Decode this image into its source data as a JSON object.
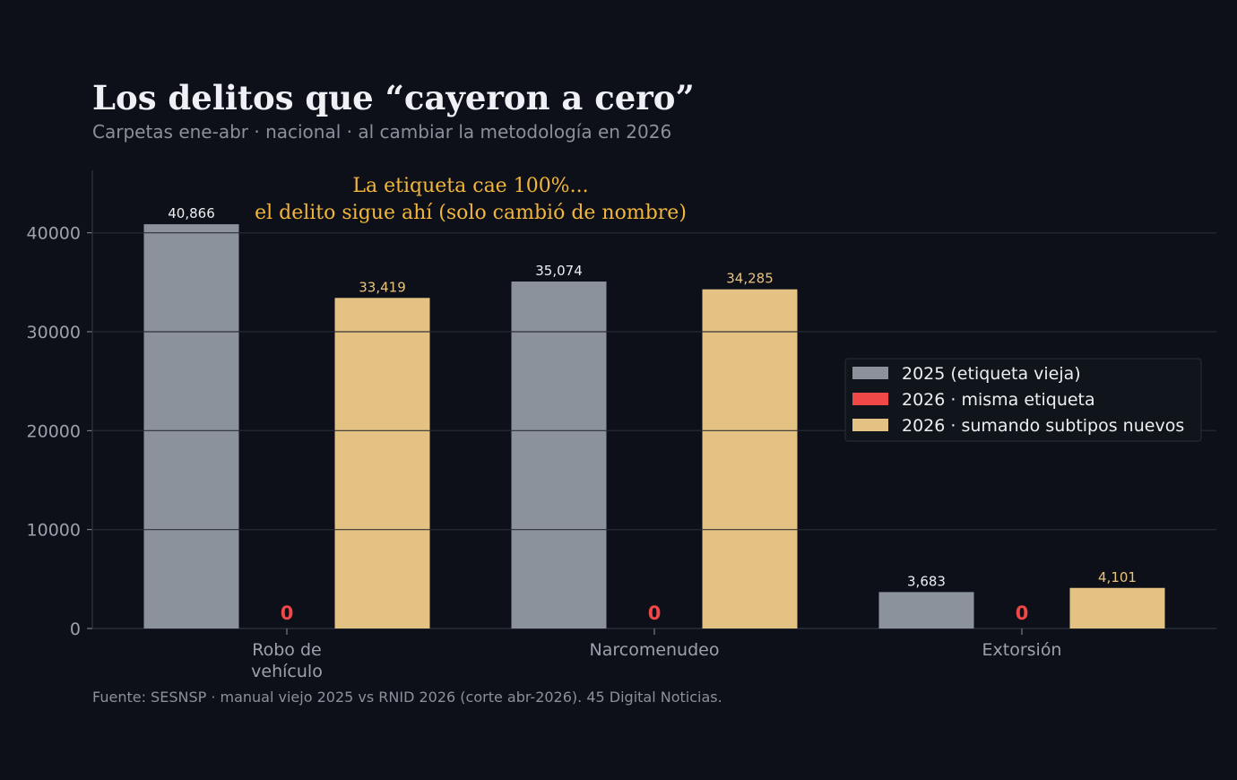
{
  "colors": {
    "background": "#0d1018",
    "grid": "#262a33",
    "axis": "#2f333b",
    "title": "#eef0f5",
    "muted": "#8b9099",
    "annotation": "#f2b63b"
  },
  "chart_data": {
    "type": "bar",
    "title": "Los delitos que “cayeron a cero”",
    "subtitle": "Carpetas ene-abr · nacional · al cambiar la metodología en 2026",
    "annotation": [
      "La etiqueta cae 100%...",
      "el delito sigue ahí (solo cambió de nombre)"
    ],
    "source": "Fuente: SESNSP · manual viejo 2025 vs RNID 2026 (corte abr-2026). 45 Digital Noticias.",
    "categories": [
      [
        "Robo de",
        "vehículo"
      ],
      [
        "Narcomenudeo"
      ],
      [
        "Extorsión"
      ]
    ],
    "ylim": [
      0,
      48000
    ],
    "yticks": [
      0,
      10000,
      20000,
      30000,
      40000
    ],
    "ytick_labels": [
      "0",
      "10000",
      "20000",
      "30000",
      "40000"
    ],
    "grid": true,
    "legend_position": "right",
    "series": [
      {
        "name": "2025 (etiqueta vieja)",
        "color": "#8b929c",
        "label_color": "#eceef2",
        "values": [
          40866,
          35074,
          3683
        ],
        "labels": [
          "40,866",
          "35,074",
          "3,683"
        ]
      },
      {
        "name": "2026 · misma etiqueta",
        "color": "#f04848",
        "label_color": "#f04848",
        "values": [
          0,
          0,
          0
        ],
        "labels": [
          "0",
          "0",
          "0"
        ]
      },
      {
        "name": "2026 · sumando subtipos nuevos",
        "color": "#e4c283",
        "label_color": "#e8c47c",
        "values": [
          33419,
          34285,
          4101
        ],
        "labels": [
          "33,419",
          "34,285",
          "4,101"
        ]
      }
    ]
  }
}
